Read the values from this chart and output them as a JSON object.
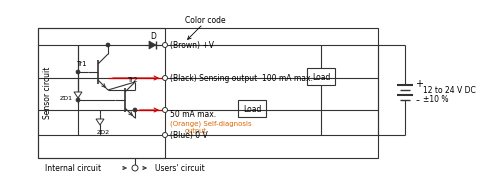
{
  "bg_color": "#ffffff",
  "line_color": "#333333",
  "red_color": "#cc0000",
  "orange_color": "#dd6600",
  "color_code_label": "Color code",
  "brown_label": "(Brown) +V",
  "black_label": "(Black) Sensing output  100 mA max.",
  "orange_label": "(Orange) Self-diagnosis",
  "output_label": "output",
  "blue_label": "(Blue) 0 V",
  "fifty_ma": "50 mA max.",
  "voltage_label": "12 to 24 V DC",
  "tolerance_label": "±10 %",
  "internal_label": "Internal circuit",
  "users_label": "Users' circuit",
  "sensor_text": "Sensor circuit",
  "tr1_label": "Tr1",
  "tr2_label": "Tr2",
  "zd1_label": "ZD1",
  "zd2_label": "ZD2",
  "d_label": "D",
  "load_label": "Load",
  "plus_label": "+",
  "minus_label": "-"
}
